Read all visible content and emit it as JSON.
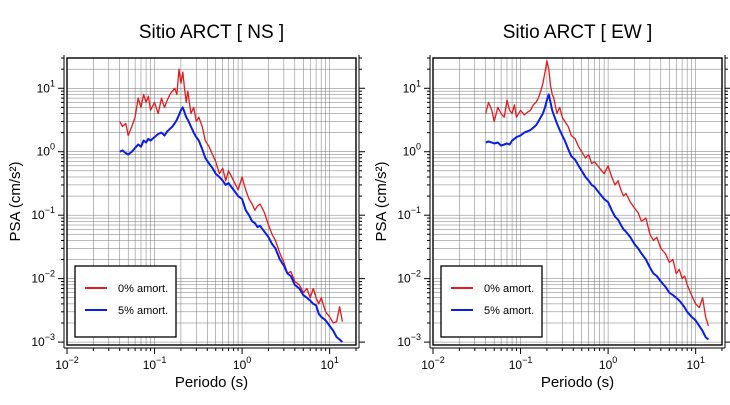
{
  "colors": {
    "series_0": "#e31a1c",
    "series_5": "#0a1ee6",
    "frame": "#000000",
    "grid": "#777777"
  },
  "chart_data": [
    {
      "type": "line",
      "title": "Sitio ARCT [ NS ]",
      "xlabel": "Periodo (s)",
      "ylabel": "PSA (cm/s²)",
      "xscale": "log",
      "yscale": "log",
      "xlim": [
        0.01,
        20
      ],
      "ylim": [
        0.0009,
        30
      ],
      "grid": true,
      "legend_position": "bottom-left",
      "xticks": [
        {
          "v": 0.01,
          "b": "10",
          "e": "−2"
        },
        {
          "v": 0.1,
          "b": "10",
          "e": "−1"
        },
        {
          "v": 1,
          "b": "10",
          "e": "0"
        },
        {
          "v": 10,
          "b": "10",
          "e": "1"
        }
      ],
      "yticks": [
        {
          "v": 0.001,
          "b": "10",
          "e": "−3"
        },
        {
          "v": 0.01,
          "b": "10",
          "e": "−2"
        },
        {
          "v": 0.1,
          "b": "10",
          "e": "−1"
        },
        {
          "v": 1,
          "b": "10",
          "e": "0"
        },
        {
          "v": 10,
          "b": "10",
          "e": "1"
        }
      ],
      "series": [
        {
          "name": "0% amort.",
          "color": "#e31a1c",
          "x": [
            0.04,
            0.043,
            0.047,
            0.05,
            0.055,
            0.06,
            0.065,
            0.07,
            0.075,
            0.08,
            0.085,
            0.09,
            0.1,
            0.11,
            0.12,
            0.13,
            0.14,
            0.15,
            0.16,
            0.17,
            0.18,
            0.19,
            0.2,
            0.21,
            0.22,
            0.23,
            0.24,
            0.26,
            0.28,
            0.3,
            0.32,
            0.35,
            0.38,
            0.42,
            0.46,
            0.5,
            0.55,
            0.6,
            0.65,
            0.7,
            0.8,
            0.9,
            1.0,
            1.1,
            1.2,
            1.3,
            1.4,
            1.5,
            1.6,
            1.8,
            2.0,
            2.2,
            2.4,
            2.7,
            3.0,
            3.3,
            3.6,
            4.0,
            4.5,
            5.0,
            5.5,
            6.0,
            6.5,
            7.0,
            7.5,
            8.0,
            9.0,
            10,
            11,
            12,
            13,
            14
          ],
          "y": [
            3.0,
            2.5,
            2.8,
            1.8,
            2.5,
            3.5,
            7.0,
            5.0,
            8.0,
            6.0,
            7.5,
            4.5,
            6.0,
            4.0,
            7.0,
            5.0,
            6.5,
            8.0,
            9.0,
            10.0,
            8.0,
            20.0,
            12.0,
            18.0,
            10.0,
            6.0,
            9.0,
            4.0,
            5.0,
            3.0,
            3.5,
            2.5,
            1.5,
            1.2,
            0.9,
            0.7,
            0.45,
            0.55,
            0.35,
            0.5,
            0.35,
            0.25,
            0.4,
            0.25,
            0.18,
            0.15,
            0.12,
            0.14,
            0.15,
            0.11,
            0.07,
            0.05,
            0.04,
            0.025,
            0.018,
            0.012,
            0.013,
            0.009,
            0.008,
            0.006,
            0.007,
            0.005,
            0.007,
            0.005,
            0.004,
            0.005,
            0.003,
            0.0025,
            0.002,
            0.0021,
            0.0036,
            0.0021
          ]
        },
        {
          "name": "5% amort.",
          "color": "#0a1ee6",
          "x": [
            0.04,
            0.043,
            0.047,
            0.05,
            0.055,
            0.06,
            0.065,
            0.07,
            0.075,
            0.08,
            0.085,
            0.09,
            0.1,
            0.11,
            0.12,
            0.13,
            0.14,
            0.15,
            0.16,
            0.17,
            0.18,
            0.19,
            0.2,
            0.21,
            0.22,
            0.23,
            0.24,
            0.26,
            0.28,
            0.3,
            0.32,
            0.35,
            0.38,
            0.42,
            0.46,
            0.5,
            0.55,
            0.6,
            0.65,
            0.7,
            0.8,
            0.9,
            1.0,
            1.1,
            1.2,
            1.3,
            1.4,
            1.5,
            1.6,
            1.8,
            2.0,
            2.2,
            2.4,
            2.7,
            3.0,
            3.3,
            3.6,
            4.0,
            4.5,
            5.0,
            5.5,
            6.0,
            6.5,
            7.0,
            7.5,
            8.0,
            9.0,
            10,
            11,
            12,
            13,
            14
          ],
          "y": [
            1.0,
            1.05,
            0.95,
            0.9,
            1.0,
            1.15,
            1.3,
            1.2,
            1.5,
            1.4,
            1.6,
            1.5,
            1.7,
            1.9,
            2.0,
            1.8,
            2.1,
            2.3,
            2.5,
            2.8,
            3.2,
            3.8,
            4.5,
            5.0,
            4.2,
            3.5,
            3.2,
            2.5,
            2.0,
            1.7,
            1.5,
            1.1,
            0.8,
            0.65,
            0.55,
            0.45,
            0.4,
            0.35,
            0.3,
            0.32,
            0.25,
            0.2,
            0.18,
            0.12,
            0.1,
            0.08,
            0.075,
            0.065,
            0.068,
            0.055,
            0.045,
            0.035,
            0.03,
            0.02,
            0.016,
            0.012,
            0.011,
            0.008,
            0.007,
            0.0055,
            0.005,
            0.0045,
            0.004,
            0.0038,
            0.0028,
            0.0025,
            0.0022,
            0.0018,
            0.0015,
            0.0012,
            0.0011,
            0.001
          ]
        }
      ]
    },
    {
      "type": "line",
      "title": "Sitio ARCT [ EW ]",
      "xlabel": "Periodo (s)",
      "ylabel": "PSA (cm/s²)",
      "xscale": "log",
      "yscale": "log",
      "xlim": [
        0.01,
        20
      ],
      "ylim": [
        0.0009,
        30
      ],
      "grid": true,
      "legend_position": "bottom-left",
      "xticks": [
        {
          "v": 0.01,
          "b": "10",
          "e": "−2"
        },
        {
          "v": 0.1,
          "b": "10",
          "e": "−1"
        },
        {
          "v": 1,
          "b": "10",
          "e": "0"
        },
        {
          "v": 10,
          "b": "10",
          "e": "1"
        }
      ],
      "yticks": [
        {
          "v": 0.001,
          "b": "10",
          "e": "−3"
        },
        {
          "v": 0.01,
          "b": "10",
          "e": "−2"
        },
        {
          "v": 0.1,
          "b": "10",
          "e": "−1"
        },
        {
          "v": 1,
          "b": "10",
          "e": "0"
        },
        {
          "v": 10,
          "b": "10",
          "e": "1"
        }
      ],
      "series": [
        {
          "name": "0% amort.",
          "color": "#e31a1c",
          "x": [
            0.04,
            0.043,
            0.047,
            0.05,
            0.055,
            0.06,
            0.065,
            0.07,
            0.075,
            0.08,
            0.085,
            0.09,
            0.1,
            0.11,
            0.12,
            0.13,
            0.14,
            0.15,
            0.16,
            0.17,
            0.18,
            0.19,
            0.2,
            0.21,
            0.22,
            0.23,
            0.24,
            0.26,
            0.28,
            0.3,
            0.32,
            0.35,
            0.38,
            0.42,
            0.46,
            0.5,
            0.55,
            0.6,
            0.65,
            0.7,
            0.8,
            0.9,
            1.0,
            1.1,
            1.2,
            1.3,
            1.4,
            1.5,
            1.6,
            1.8,
            2.0,
            2.2,
            2.4,
            2.7,
            3.0,
            3.3,
            3.6,
            4.0,
            4.5,
            5.0,
            5.5,
            6.0,
            6.5,
            7.0,
            7.5,
            8.0,
            9.0,
            10,
            11,
            12,
            13,
            14
          ],
          "y": [
            4.0,
            6.0,
            4.5,
            3.0,
            5.0,
            4.0,
            3.5,
            6.5,
            4.5,
            4.0,
            5.5,
            3.5,
            4.5,
            3.8,
            4.2,
            4.5,
            5.5,
            6.0,
            7.0,
            9.0,
            12.0,
            18.0,
            27.0,
            20.0,
            11.0,
            8.0,
            7.0,
            4.0,
            5.0,
            3.5,
            3.0,
            2.5,
            1.8,
            1.6,
            1.2,
            1.0,
            0.8,
            0.9,
            0.65,
            0.7,
            0.55,
            0.45,
            0.6,
            0.4,
            0.3,
            0.35,
            0.25,
            0.2,
            0.22,
            0.16,
            0.13,
            0.11,
            0.08,
            0.09,
            0.05,
            0.04,
            0.045,
            0.03,
            0.025,
            0.018,
            0.02,
            0.012,
            0.014,
            0.01,
            0.011,
            0.008,
            0.0055,
            0.004,
            0.0035,
            0.005,
            0.0025,
            0.0018
          ]
        },
        {
          "name": "5% amort.",
          "color": "#0a1ee6",
          "x": [
            0.04,
            0.043,
            0.047,
            0.05,
            0.055,
            0.06,
            0.065,
            0.07,
            0.075,
            0.08,
            0.085,
            0.09,
            0.1,
            0.11,
            0.12,
            0.13,
            0.14,
            0.15,
            0.16,
            0.17,
            0.18,
            0.19,
            0.2,
            0.21,
            0.22,
            0.23,
            0.24,
            0.26,
            0.28,
            0.3,
            0.32,
            0.35,
            0.38,
            0.42,
            0.46,
            0.5,
            0.55,
            0.6,
            0.65,
            0.7,
            0.8,
            0.9,
            1.0,
            1.1,
            1.2,
            1.3,
            1.4,
            1.5,
            1.6,
            1.8,
            2.0,
            2.2,
            2.4,
            2.7,
            3.0,
            3.3,
            3.6,
            4.0,
            4.5,
            5.0,
            5.5,
            6.0,
            6.5,
            7.0,
            7.5,
            8.0,
            9.0,
            10,
            11,
            12,
            13,
            14
          ],
          "y": [
            1.4,
            1.45,
            1.4,
            1.35,
            1.4,
            1.25,
            1.3,
            1.35,
            1.3,
            1.5,
            1.6,
            1.7,
            1.8,
            2.0,
            2.1,
            2.2,
            2.4,
            2.6,
            3.0,
            3.5,
            4.0,
            5.0,
            6.5,
            8.0,
            6.0,
            4.5,
            3.8,
            2.8,
            2.2,
            1.8,
            1.5,
            1.1,
            0.85,
            0.75,
            0.6,
            0.5,
            0.4,
            0.35,
            0.3,
            0.28,
            0.22,
            0.18,
            0.16,
            0.12,
            0.095,
            0.085,
            0.07,
            0.06,
            0.055,
            0.045,
            0.035,
            0.03,
            0.025,
            0.02,
            0.015,
            0.012,
            0.011,
            0.009,
            0.0075,
            0.006,
            0.0055,
            0.005,
            0.0045,
            0.004,
            0.0035,
            0.003,
            0.0025,
            0.0022,
            0.0018,
            0.0015,
            0.0012,
            0.0011
          ]
        }
      ]
    }
  ]
}
